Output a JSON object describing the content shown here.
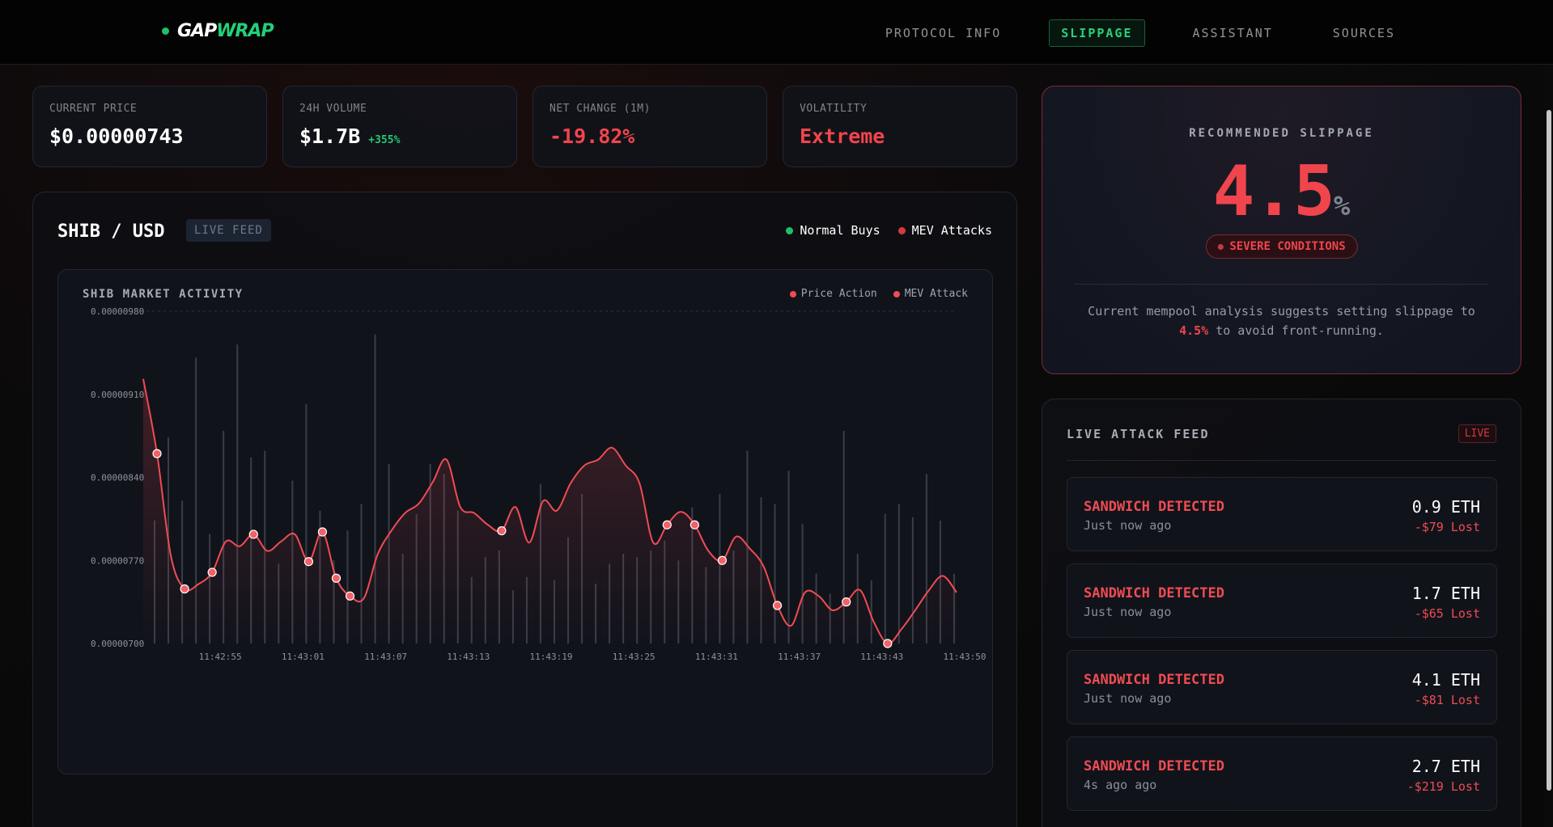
{
  "app": {
    "logo_part1": "GAP",
    "logo_part2": "WRAP",
    "nav": [
      {
        "label": "PROTOCOL INFO",
        "active": false
      },
      {
        "label": "SLIPPAGE",
        "active": true
      },
      {
        "label": "ASSISTANT",
        "active": false
      },
      {
        "label": "SOURCES",
        "active": false
      }
    ]
  },
  "stats": [
    {
      "label": "CURRENT PRICE",
      "value": "$0.00000743",
      "sub": ""
    },
    {
      "label": "24H VOLUME",
      "value": "$1.7B",
      "sub": "+355%"
    },
    {
      "label": "NET CHANGE (1M)",
      "value": "-19.82%",
      "sub": ""
    },
    {
      "label": "VOLATILITY",
      "value": "Extreme",
      "sub": ""
    }
  ],
  "chart_panel": {
    "pair": "SHIB / USD",
    "status": "LIVE FEED",
    "legend": [
      {
        "label": "Normal Buys",
        "color": "#1fbf6a"
      },
      {
        "label": "MEV Attacks",
        "color": "#d63a40"
      }
    ]
  },
  "chart_data": {
    "type": "line",
    "title": "SHIB MARKET ACTIVITY",
    "legend": [
      {
        "label": "Price Action",
        "color": "#ef4c52"
      },
      {
        "label": "MEV Attack",
        "color": "#ef4c52"
      }
    ],
    "ylim": [
      7e-06,
      9.8e-06
    ],
    "y_ticks": [
      "0.00000980",
      "0.00000910",
      "0.00000840",
      "0.00000770",
      "0.00000700"
    ],
    "y_tick_values": [
      9.8e-06,
      9.1e-06,
      8.4e-06,
      7.7e-06,
      7e-06
    ],
    "x_ticks": [
      "11:42:55",
      "11:43:01",
      "11:43:07",
      "11:43:13",
      "11:43:19",
      "11:43:25",
      "11:43:31",
      "11:43:37",
      "11:43:43",
      "11:43:50"
    ],
    "x_tick_index": [
      5,
      11,
      17,
      23,
      29,
      35,
      41,
      47,
      53,
      59
    ],
    "price": [
      9.23e-06,
      8.6e-06,
      7.74e-06,
      7.46e-06,
      7.5e-06,
      7.6e-06,
      7.86e-06,
      7.82e-06,
      7.92e-06,
      7.78e-06,
      7.86e-06,
      7.92e-06,
      7.69e-06,
      7.94e-06,
      7.55e-06,
      7.4e-06,
      7.38e-06,
      7.75e-06,
      7.95e-06,
      8.1e-06,
      8.18e-06,
      8.36e-06,
      8.55e-06,
      8.15e-06,
      8.1e-06,
      8e-06,
      7.95e-06,
      8.15e-06,
      7.85e-06,
      8.2e-06,
      8.12e-06,
      8.35e-06,
      8.5e-06,
      8.55e-06,
      8.65e-06,
      8.5e-06,
      8.35e-06,
      7.85e-06,
      8e-06,
      8.11e-06,
      8e-06,
      7.78e-06,
      7.7e-06,
      7.9e-06,
      7.8e-06,
      7.65e-06,
      7.32e-06,
      7.15e-06,
      7.43e-06,
      7.4e-06,
      7.28e-06,
      7.35e-06,
      7.45e-06,
      7.18e-06,
      7e-06,
      7.12e-06,
      7.28e-06,
      7.45e-06,
      7.57e-06,
      7.43e-06
    ],
    "mev_points": [
      1,
      3,
      5,
      8,
      12,
      13,
      14,
      15,
      26,
      38,
      40,
      42,
      46,
      51,
      54
    ],
    "volume": [
      37,
      62,
      43,
      86,
      33,
      64,
      90,
      56,
      58,
      24,
      49,
      72,
      40,
      25,
      34,
      42,
      93,
      54,
      27,
      39,
      54,
      51,
      40,
      20,
      26,
      28,
      16,
      20,
      48,
      19,
      32,
      45,
      18,
      24,
      27,
      26,
      28,
      31,
      25,
      41,
      23,
      45,
      28,
      58,
      44,
      42,
      52,
      36,
      21,
      15,
      64,
      27,
      19,
      39,
      42,
      38,
      51,
      37,
      21,
      32
    ]
  },
  "slippage": {
    "label": "RECOMMENDED SLIPPAGE",
    "value": "4.5",
    "unit": "%",
    "condition": "SEVERE CONDITIONS",
    "desc_prefix": "Current mempool analysis suggests setting slippage to",
    "desc_highlight": "4.5%",
    "desc_suffix": "to avoid front-running."
  },
  "feed": {
    "title": "LIVE ATTACK FEED",
    "status": "LIVE",
    "items": [
      {
        "type": "SANDWICH DETECTED",
        "time": "Just now ago",
        "amount": "0.9 ETH",
        "loss": "-$79 Lost"
      },
      {
        "type": "SANDWICH DETECTED",
        "time": "Just now ago",
        "amount": "1.7 ETH",
        "loss": "-$65 Lost"
      },
      {
        "type": "SANDWICH DETECTED",
        "time": "Just now ago",
        "amount": "4.1 ETH",
        "loss": "-$81 Lost"
      },
      {
        "type": "SANDWICH DETECTED",
        "time": "4s ago ago",
        "amount": "2.7 ETH",
        "loss": "-$219 Lost"
      }
    ]
  }
}
